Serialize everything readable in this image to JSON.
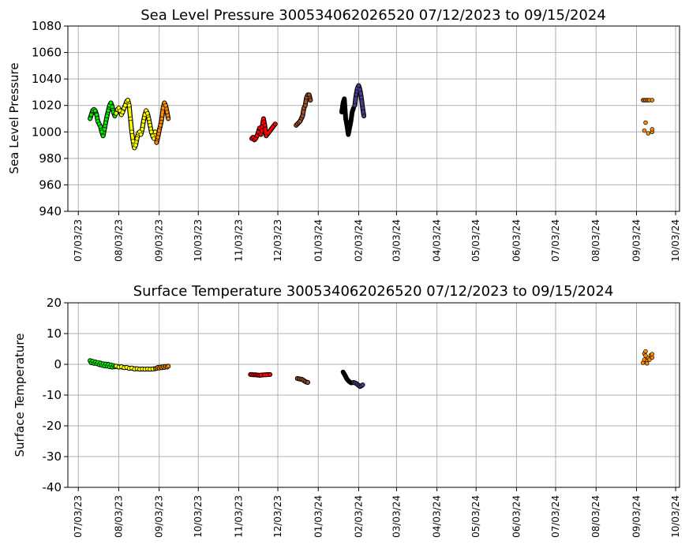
{
  "chart_data": [
    {
      "type": "scatter",
      "title": "Sea Level Pressure 300534062026520  07/12/2023 to 09/15/2024",
      "xlabel": "",
      "ylabel": "Sea Level Pressure",
      "ylim": [
        940,
        1080
      ],
      "yticks": [
        940,
        960,
        980,
        1000,
        1020,
        1040,
        1060,
        1080
      ],
      "xlim": [
        "2023-06-25",
        "2024-10-06"
      ],
      "xticks": [
        "07/03/23",
        "08/03/23",
        "09/03/23",
        "10/03/23",
        "11/03/23",
        "12/03/23",
        "01/03/24",
        "02/03/24",
        "03/03/24",
        "04/03/24",
        "05/03/24",
        "06/03/24",
        "07/03/24",
        "08/03/24",
        "09/03/24",
        "10/03/24"
      ],
      "grid": true,
      "series": [
        {
          "color": "#00ee00",
          "points": [
            [
              "2023-07-12",
              1010
            ],
            [
              "2023-07-13",
              1013
            ],
            [
              "2023-07-14",
              1016
            ],
            [
              "2023-07-15",
              1017
            ],
            [
              "2023-07-16",
              1016
            ],
            [
              "2023-07-17",
              1013
            ],
            [
              "2023-07-18",
              1008
            ],
            [
              "2023-07-19",
              1006
            ],
            [
              "2023-07-20",
              1004
            ],
            [
              "2023-07-21",
              1000
            ],
            [
              "2023-07-22",
              997
            ],
            [
              "2023-07-23",
              1002
            ],
            [
              "2023-07-24",
              1007
            ],
            [
              "2023-07-25",
              1012
            ],
            [
              "2023-07-26",
              1016
            ],
            [
              "2023-07-27",
              1020
            ],
            [
              "2023-07-28",
              1022
            ],
            [
              "2023-07-29",
              1019
            ],
            [
              "2023-07-30",
              1015
            ],
            [
              "2023-07-31",
              1012
            ]
          ]
        },
        {
          "color": "#ffff00",
          "points": [
            [
              "2023-08-01",
              1014
            ],
            [
              "2023-08-02",
              1017
            ],
            [
              "2023-08-03",
              1018
            ],
            [
              "2023-08-04",
              1016
            ],
            [
              "2023-08-05",
              1013
            ],
            [
              "2023-08-06",
              1015
            ],
            [
              "2023-08-07",
              1018
            ],
            [
              "2023-08-08",
              1020
            ],
            [
              "2023-08-09",
              1023
            ],
            [
              "2023-08-10",
              1024
            ],
            [
              "2023-08-11",
              1020
            ],
            [
              "2023-08-12",
              1010
            ],
            [
              "2023-08-13",
              1000
            ],
            [
              "2023-08-14",
              993
            ],
            [
              "2023-08-15",
              988
            ],
            [
              "2023-08-16",
              990
            ],
            [
              "2023-08-17",
              995
            ],
            [
              "2023-08-18",
              999
            ],
            [
              "2023-08-19",
              1000
            ],
            [
              "2023-08-20",
              998
            ],
            [
              "2023-08-21",
              1002
            ],
            [
              "2023-08-22",
              1008
            ],
            [
              "2023-08-23",
              1013
            ],
            [
              "2023-08-24",
              1016
            ],
            [
              "2023-08-25",
              1014
            ],
            [
              "2023-08-26",
              1010
            ],
            [
              "2023-08-27",
              1005
            ],
            [
              "2023-08-28",
              1000
            ],
            [
              "2023-08-29",
              997
            ],
            [
              "2023-08-30",
              995
            ],
            [
              "2023-08-31",
              1000
            ]
          ]
        },
        {
          "color": "#ff8c00",
          "points": [
            [
              "2023-09-01",
              992
            ],
            [
              "2023-09-02",
              996
            ],
            [
              "2023-09-03",
              1001
            ],
            [
              "2023-09-04",
              1005
            ],
            [
              "2023-09-05",
              1010
            ],
            [
              "2023-09-06",
              1018
            ],
            [
              "2023-09-07",
              1022
            ],
            [
              "2023-09-08",
              1020
            ],
            [
              "2023-09-09",
              1015
            ],
            [
              "2023-09-10",
              1010
            ]
          ]
        },
        {
          "color": "#ff0000",
          "points": [
            [
              "2023-11-13",
              995
            ],
            [
              "2023-11-14",
              996
            ],
            [
              "2023-11-15",
              994
            ],
            [
              "2023-11-16",
              995
            ],
            [
              "2023-11-17",
              997
            ],
            [
              "2023-11-18",
              1000
            ],
            [
              "2023-11-19",
              1003
            ],
            [
              "2023-11-20",
              998
            ],
            [
              "2023-11-21",
              1004
            ],
            [
              "2023-11-22",
              1010
            ],
            [
              "2023-11-23",
              1005
            ],
            [
              "2023-11-24",
              997
            ],
            [
              "2023-12-01",
              1006
            ]
          ]
        },
        {
          "color": "#a0522d",
          "points": [
            [
              "2023-12-17",
              1005
            ],
            [
              "2023-12-18",
              1006
            ],
            [
              "2023-12-19",
              1007
            ],
            [
              "2023-12-20",
              1008
            ],
            [
              "2023-12-22",
              1012
            ],
            [
              "2023-12-23",
              1018
            ],
            [
              "2023-12-24",
              1020
            ],
            [
              "2023-12-25",
              1026
            ],
            [
              "2023-12-26",
              1028
            ],
            [
              "2023-12-27",
              1028
            ],
            [
              "2023-12-28",
              1024
            ]
          ]
        },
        {
          "color": "#000000",
          "points": [
            [
              "2024-01-21",
              1015
            ],
            [
              "2024-01-22",
              1022
            ],
            [
              "2024-01-23",
              1025
            ],
            [
              "2024-01-24",
              1010
            ],
            [
              "2024-01-25",
              1005
            ],
            [
              "2024-01-26",
              998
            ],
            [
              "2024-01-27",
              1003
            ],
            [
              "2024-01-28",
              1008
            ],
            [
              "2024-01-29",
              1015
            ],
            [
              "2024-01-30",
              1018
            ]
          ]
        },
        {
          "color": "#483d8b",
          "points": [
            [
              "2024-01-31",
              1020
            ],
            [
              "2024-02-01",
              1028
            ],
            [
              "2024-02-02",
              1033
            ],
            [
              "2024-02-03",
              1035
            ],
            [
              "2024-02-04",
              1032
            ],
            [
              "2024-02-05",
              1026
            ],
            [
              "2024-02-06",
              1018
            ],
            [
              "2024-02-07",
              1012
            ]
          ]
        },
        {
          "color": "#ff8c00",
          "points": [
            [
              "2024-09-08",
              1024
            ],
            [
              "2024-09-09",
              1024
            ],
            [
              "2024-09-10",
              1024
            ],
            [
              "2024-09-11",
              1024
            ],
            [
              "2024-09-12",
              1024
            ],
            [
              "2024-09-13",
              1024
            ],
            [
              "2024-09-15",
              1024
            ],
            [
              "2024-09-09",
              1001
            ],
            [
              "2024-09-10",
              1007
            ],
            [
              "2024-09-12",
              999
            ],
            [
              "2024-09-15",
              1000
            ],
            [
              "2024-09-15",
              1002
            ]
          ]
        }
      ]
    },
    {
      "type": "scatter",
      "title": "Surface Temperature 300534062026520  07/12/2023 to 09/15/2024",
      "xlabel": "",
      "ylabel": "Surface Temperature",
      "ylim": [
        -40,
        20
      ],
      "yticks": [
        -40,
        -30,
        -20,
        -10,
        0,
        10,
        20
      ],
      "xlim": [
        "2023-06-25",
        "2024-10-06"
      ],
      "xticks": [
        "07/03/23",
        "08/03/23",
        "09/03/23",
        "10/03/23",
        "11/03/23",
        "12/03/23",
        "01/03/24",
        "02/03/24",
        "03/03/24",
        "04/03/24",
        "05/03/24",
        "06/03/24",
        "07/03/24",
        "08/03/24",
        "09/03/24",
        "10/03/24"
      ],
      "grid": true,
      "series": [
        {
          "color": "#00ee00",
          "points": [
            [
              "2023-07-12",
              1.2
            ],
            [
              "2023-07-13",
              0.5
            ],
            [
              "2023-07-14",
              1.0
            ],
            [
              "2023-07-15",
              0.3
            ],
            [
              "2023-07-16",
              0.8
            ],
            [
              "2023-07-17",
              0.2
            ],
            [
              "2023-07-18",
              0.6
            ],
            [
              "2023-07-19",
              -0.1
            ],
            [
              "2023-07-20",
              0.4
            ],
            [
              "2023-07-21",
              -0.3
            ],
            [
              "2023-07-22",
              0.2
            ],
            [
              "2023-07-23",
              -0.5
            ],
            [
              "2023-07-24",
              0.1
            ],
            [
              "2023-07-25",
              -0.6
            ],
            [
              "2023-07-26",
              0.0
            ],
            [
              "2023-07-27",
              -0.8
            ],
            [
              "2023-07-28",
              -0.2
            ],
            [
              "2023-07-29",
              -0.9
            ],
            [
              "2023-07-30",
              -0.4
            ],
            [
              "2023-07-31",
              -0.8
            ]
          ]
        },
        {
          "color": "#ffff00",
          "points": [
            [
              "2023-08-01",
              -0.6
            ],
            [
              "2023-08-03",
              -0.9
            ],
            [
              "2023-08-05",
              -0.8
            ],
            [
              "2023-08-07",
              -1.1
            ],
            [
              "2023-08-09",
              -1.0
            ],
            [
              "2023-08-11",
              -1.3
            ],
            [
              "2023-08-13",
              -1.2
            ],
            [
              "2023-08-15",
              -1.5
            ],
            [
              "2023-08-17",
              -1.4
            ],
            [
              "2023-08-19",
              -1.6
            ],
            [
              "2023-08-21",
              -1.5
            ],
            [
              "2023-08-23",
              -1.6
            ],
            [
              "2023-08-25",
              -1.5
            ],
            [
              "2023-08-27",
              -1.6
            ],
            [
              "2023-08-29",
              -1.5
            ],
            [
              "2023-08-31",
              -1.4
            ]
          ]
        },
        {
          "color": "#ff8c00",
          "points": [
            [
              "2023-09-01",
              -1.3
            ],
            [
              "2023-09-02",
              -1.0
            ],
            [
              "2023-09-03",
              -1.2
            ],
            [
              "2023-09-04",
              -0.9
            ],
            [
              "2023-09-05",
              -1.1
            ],
            [
              "2023-09-06",
              -0.8
            ],
            [
              "2023-09-07",
              -1.0
            ],
            [
              "2023-09-08",
              -0.7
            ],
            [
              "2023-09-09",
              -0.9
            ],
            [
              "2023-09-10",
              -0.6
            ]
          ]
        },
        {
          "color": "#ff0000",
          "points": [
            [
              "2023-11-12",
              -3.3
            ],
            [
              "2023-11-13",
              -3.3
            ],
            [
              "2023-11-14",
              -3.4
            ],
            [
              "2023-11-15",
              -3.4
            ],
            [
              "2023-11-16",
              -3.4
            ],
            [
              "2023-11-17",
              -3.5
            ],
            [
              "2023-11-18",
              -3.5
            ],
            [
              "2023-11-19",
              -3.6
            ],
            [
              "2023-11-20",
              -3.5
            ],
            [
              "2023-11-27",
              -3.3
            ]
          ]
        },
        {
          "color": "#a0522d",
          "points": [
            [
              "2023-12-18",
              -4.6
            ],
            [
              "2023-12-19",
              -4.7
            ],
            [
              "2023-12-20",
              -4.8
            ],
            [
              "2023-12-21",
              -4.8
            ],
            [
              "2023-12-22",
              -5.0
            ],
            [
              "2023-12-23",
              -5.3
            ],
            [
              "2023-12-24",
              -5.6
            ],
            [
              "2023-12-25",
              -5.8
            ],
            [
              "2023-12-26",
              -5.9
            ]
          ]
        },
        {
          "color": "#000000",
          "points": [
            [
              "2024-01-22",
              -2.5
            ],
            [
              "2024-01-23",
              -3.2
            ],
            [
              "2024-01-24",
              -4.0
            ],
            [
              "2024-01-25",
              -4.8
            ],
            [
              "2024-01-26",
              -5.3
            ],
            [
              "2024-01-27",
              -5.7
            ],
            [
              "2024-01-28",
              -6.0
            ],
            [
              "2024-01-29",
              -6.0
            ]
          ]
        },
        {
          "color": "#483d8b",
          "points": [
            [
              "2024-01-30",
              -5.9
            ],
            [
              "2024-01-31",
              -6.0
            ],
            [
              "2024-02-01",
              -6.2
            ],
            [
              "2024-02-02",
              -6.5
            ],
            [
              "2024-02-03",
              -6.9
            ],
            [
              "2024-02-04",
              -7.2
            ],
            [
              "2024-02-05",
              -7.0
            ],
            [
              "2024-02-06",
              -6.7
            ]
          ]
        },
        {
          "color": "#ff8c00",
          "points": [
            [
              "2024-09-08",
              0.5
            ],
            [
              "2024-09-09",
              1.5
            ],
            [
              "2024-09-09",
              3.5
            ],
            [
              "2024-09-10",
              4.2
            ],
            [
              "2024-09-10",
              2.8
            ],
            [
              "2024-09-11",
              1.0
            ],
            [
              "2024-09-11",
              0.3
            ],
            [
              "2024-09-12",
              2.0
            ],
            [
              "2024-09-13",
              1.5
            ],
            [
              "2024-09-14",
              3.0
            ],
            [
              "2024-09-15",
              2.2
            ],
            [
              "2024-09-15",
              3.3
            ]
          ]
        }
      ]
    }
  ]
}
